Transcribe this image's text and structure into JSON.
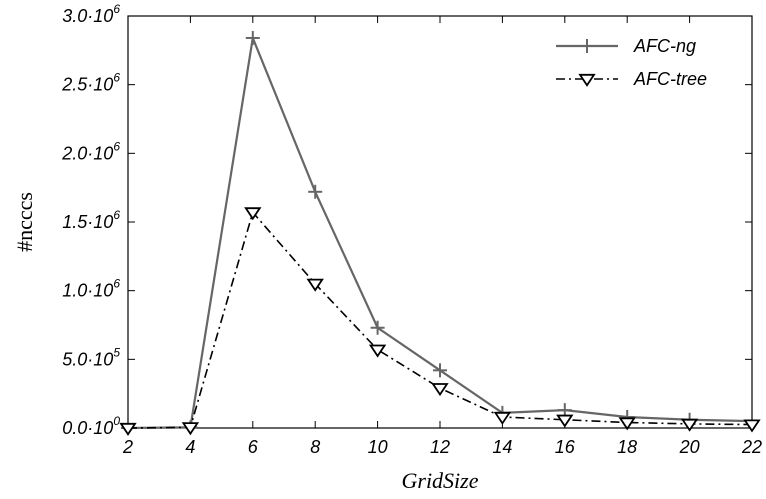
{
  "chart_data": {
    "type": "line",
    "xlabel": "GridSize",
    "ylabel": "#ncccs",
    "x": [
      2,
      4,
      6,
      8,
      10,
      12,
      14,
      16,
      18,
      20,
      22
    ],
    "xlim": [
      2,
      22
    ],
    "ylim": [
      0,
      3000000
    ],
    "x_ticks": [
      "2",
      "4",
      "6",
      "8",
      "10",
      "12",
      "14",
      "16",
      "18",
      "20",
      "22"
    ],
    "y_ticks": [
      {
        "value": 0,
        "mantissa": "0.0",
        "exp": "0"
      },
      {
        "value": 500000,
        "mantissa": "5.0",
        "exp": "5"
      },
      {
        "value": 1000000,
        "mantissa": "1.0",
        "exp": "6"
      },
      {
        "value": 1500000,
        "mantissa": "1.5",
        "exp": "6"
      },
      {
        "value": 2000000,
        "mantissa": "2.0",
        "exp": "6"
      },
      {
        "value": 2500000,
        "mantissa": "2.5",
        "exp": "6"
      },
      {
        "value": 3000000,
        "mantissa": "3.0",
        "exp": "6"
      }
    ],
    "grid": false,
    "legend": "top-right",
    "series": [
      {
        "name": "AFC-ng",
        "marker": "plus",
        "line": "solid",
        "color": "#666666",
        "values": [
          0,
          5000,
          2840000,
          1720000,
          730000,
          420000,
          110000,
          130000,
          80000,
          60000,
          50000
        ]
      },
      {
        "name": "AFC-tree",
        "marker": "triangle-down",
        "line": "dash-dot",
        "color": "#000000",
        "values": [
          0,
          5000,
          1570000,
          1050000,
          570000,
          290000,
          80000,
          60000,
          40000,
          30000,
          25000
        ]
      }
    ]
  }
}
